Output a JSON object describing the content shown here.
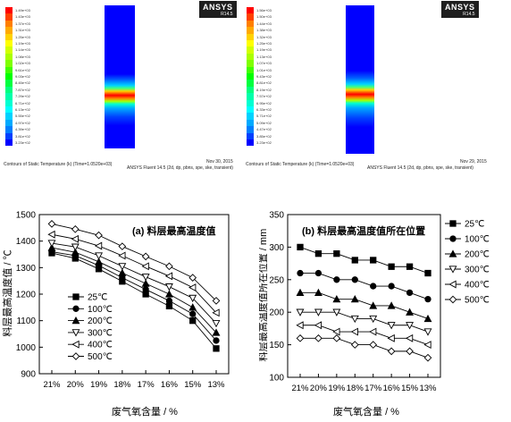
{
  "contour_panels": [
    {
      "brand": "ANSYS",
      "version": "R14.5",
      "legend": [
        "1.49e+03",
        "1.43e+03",
        "1.37e+03",
        "1.31e+03",
        "1.25e+03",
        "1.19e+03",
        "1.14e+03",
        "1.08e+03",
        "1.02e+03",
        "9.61e+02",
        "9.03e+02",
        "8.45e+02",
        "7.87e+02",
        "7.29e+02",
        "6.71e+02",
        "6.13e+02",
        "5.55e+02",
        "4.97e+02",
        "4.39e+02",
        "3.81e+02",
        "3.23e+02"
      ],
      "caption": "Contours of Static Temperature (k)  (Time=1.0520e+03)",
      "date": "Nov 30, 2015",
      "solver": "ANSYS Fluent 14.5 (2d, dp, pbns, spe, ske, transient)"
    },
    {
      "brand": "ANSYS",
      "version": "R14.5",
      "legend": [
        "1.56e+03",
        "1.50e+03",
        "1.44e+03",
        "1.38e+03",
        "1.32e+03",
        "1.25e+03",
        "1.19e+03",
        "1.13e+03",
        "1.07e+03",
        "1.01e+03",
        "9.43e+02",
        "8.81e+02",
        "8.19e+02",
        "7.57e+02",
        "6.95e+02",
        "6.33e+02",
        "5.71e+02",
        "5.09e+02",
        "4.47e+02",
        "3.85e+02",
        "3.23e+02"
      ],
      "caption": "Contours of Static Temperature (k)  (Time=1.0520e+03)",
      "date": "Nov 29, 2015",
      "solver": "ANSYS Fluent 14.5 (2d, dp, pbns, spe, ske, transient)"
    }
  ],
  "colormap": [
    "#ff0000",
    "#ff4000",
    "#ff7f00",
    "#ffaa00",
    "#ffd200",
    "#ffff00",
    "#d2ff00",
    "#aaff00",
    "#7fff00",
    "#40ff00",
    "#00ff00",
    "#00ff40",
    "#00ff7f",
    "#00ffaa",
    "#00ffd2",
    "#00ffff",
    "#00d2ff",
    "#00aaff",
    "#007fff",
    "#0040ff",
    "#0000ff"
  ],
  "chart_data": [
    {
      "type": "line",
      "title": "(a) 料层最高温度值",
      "xlabel": "废气氧含量 / %",
      "ylabel": "料层最高温度值 / ℃",
      "categories": [
        "21%",
        "20%",
        "19%",
        "18%",
        "17%",
        "16%",
        "15%",
        "13%"
      ],
      "ylim": [
        900,
        1500
      ],
      "yticks": [
        900,
        1000,
        1100,
        1200,
        1300,
        1400,
        1500
      ],
      "legend_position": "bottom-left",
      "grid": false,
      "series": [
        {
          "name": "25℃",
          "marker": "square",
          "values": [
            1355,
            1335,
            1295,
            1248,
            1200,
            1155,
            1100,
            995
          ]
        },
        {
          "name": "100℃",
          "marker": "circle",
          "values": [
            1360,
            1345,
            1308,
            1262,
            1218,
            1175,
            1125,
            1025
          ]
        },
        {
          "name": "200℃",
          "marker": "triangle-up",
          "values": [
            1375,
            1358,
            1322,
            1280,
            1240,
            1200,
            1150,
            1055
          ]
        },
        {
          "name": "300℃",
          "marker": "triangle-down",
          "values": [
            1392,
            1378,
            1345,
            1305,
            1265,
            1228,
            1185,
            1090
          ]
        },
        {
          "name": "400℃",
          "marker": "triangle-left",
          "values": [
            1425,
            1408,
            1382,
            1345,
            1305,
            1268,
            1225,
            1130
          ]
        },
        {
          "name": "500℃",
          "marker": "diamond",
          "values": [
            1465,
            1445,
            1422,
            1380,
            1342,
            1305,
            1262,
            1175
          ]
        }
      ]
    },
    {
      "type": "line",
      "title": "(b) 料层最高温度值所在位置",
      "xlabel": "废气氧含量 / %",
      "ylabel": "料层最高温度值所在位置 / mm",
      "categories": [
        "21%",
        "20%",
        "19%",
        "18%",
        "17%",
        "16%",
        "15%",
        "13%"
      ],
      "ylim": [
        100,
        350
      ],
      "yticks": [
        100,
        150,
        200,
        250,
        300,
        350
      ],
      "legend_position": "right",
      "grid": false,
      "series": [
        {
          "name": "25℃",
          "marker": "square",
          "values": [
            300,
            290,
            290,
            280,
            280,
            270,
            270,
            260
          ]
        },
        {
          "name": "100℃",
          "marker": "circle",
          "values": [
            260,
            260,
            250,
            250,
            240,
            240,
            230,
            220
          ]
        },
        {
          "name": "200℃",
          "marker": "triangle-up",
          "values": [
            230,
            230,
            220,
            220,
            210,
            210,
            200,
            190
          ]
        },
        {
          "name": "300℃",
          "marker": "triangle-down",
          "values": [
            200,
            200,
            200,
            190,
            190,
            180,
            180,
            170
          ]
        },
        {
          "name": "400℃",
          "marker": "triangle-left",
          "values": [
            180,
            180,
            170,
            170,
            170,
            160,
            160,
            150
          ]
        },
        {
          "name": "500℃",
          "marker": "diamond",
          "values": [
            160,
            160,
            160,
            150,
            150,
            140,
            140,
            130
          ]
        }
      ]
    }
  ]
}
